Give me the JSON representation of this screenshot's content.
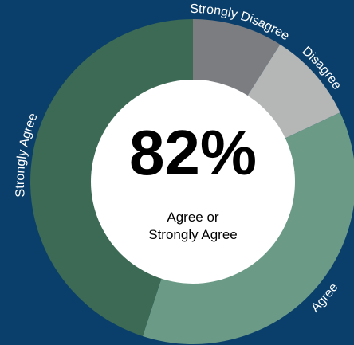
{
  "chart_data": {
    "type": "pie",
    "variant": "donut",
    "categories": [
      "Strongly Disagree",
      "Disagree",
      "Agree",
      "Strongly Agree"
    ],
    "values": [
      9,
      9,
      37,
      45
    ],
    "colors": [
      "#7c7d81",
      "#b5b7b6",
      "#6b9a86",
      "#3c6a55"
    ],
    "center_value": "82%",
    "center_caption_line1": "Agree or",
    "center_caption_line2": "Strongly Agree"
  },
  "background_color": "#0b3f6b"
}
